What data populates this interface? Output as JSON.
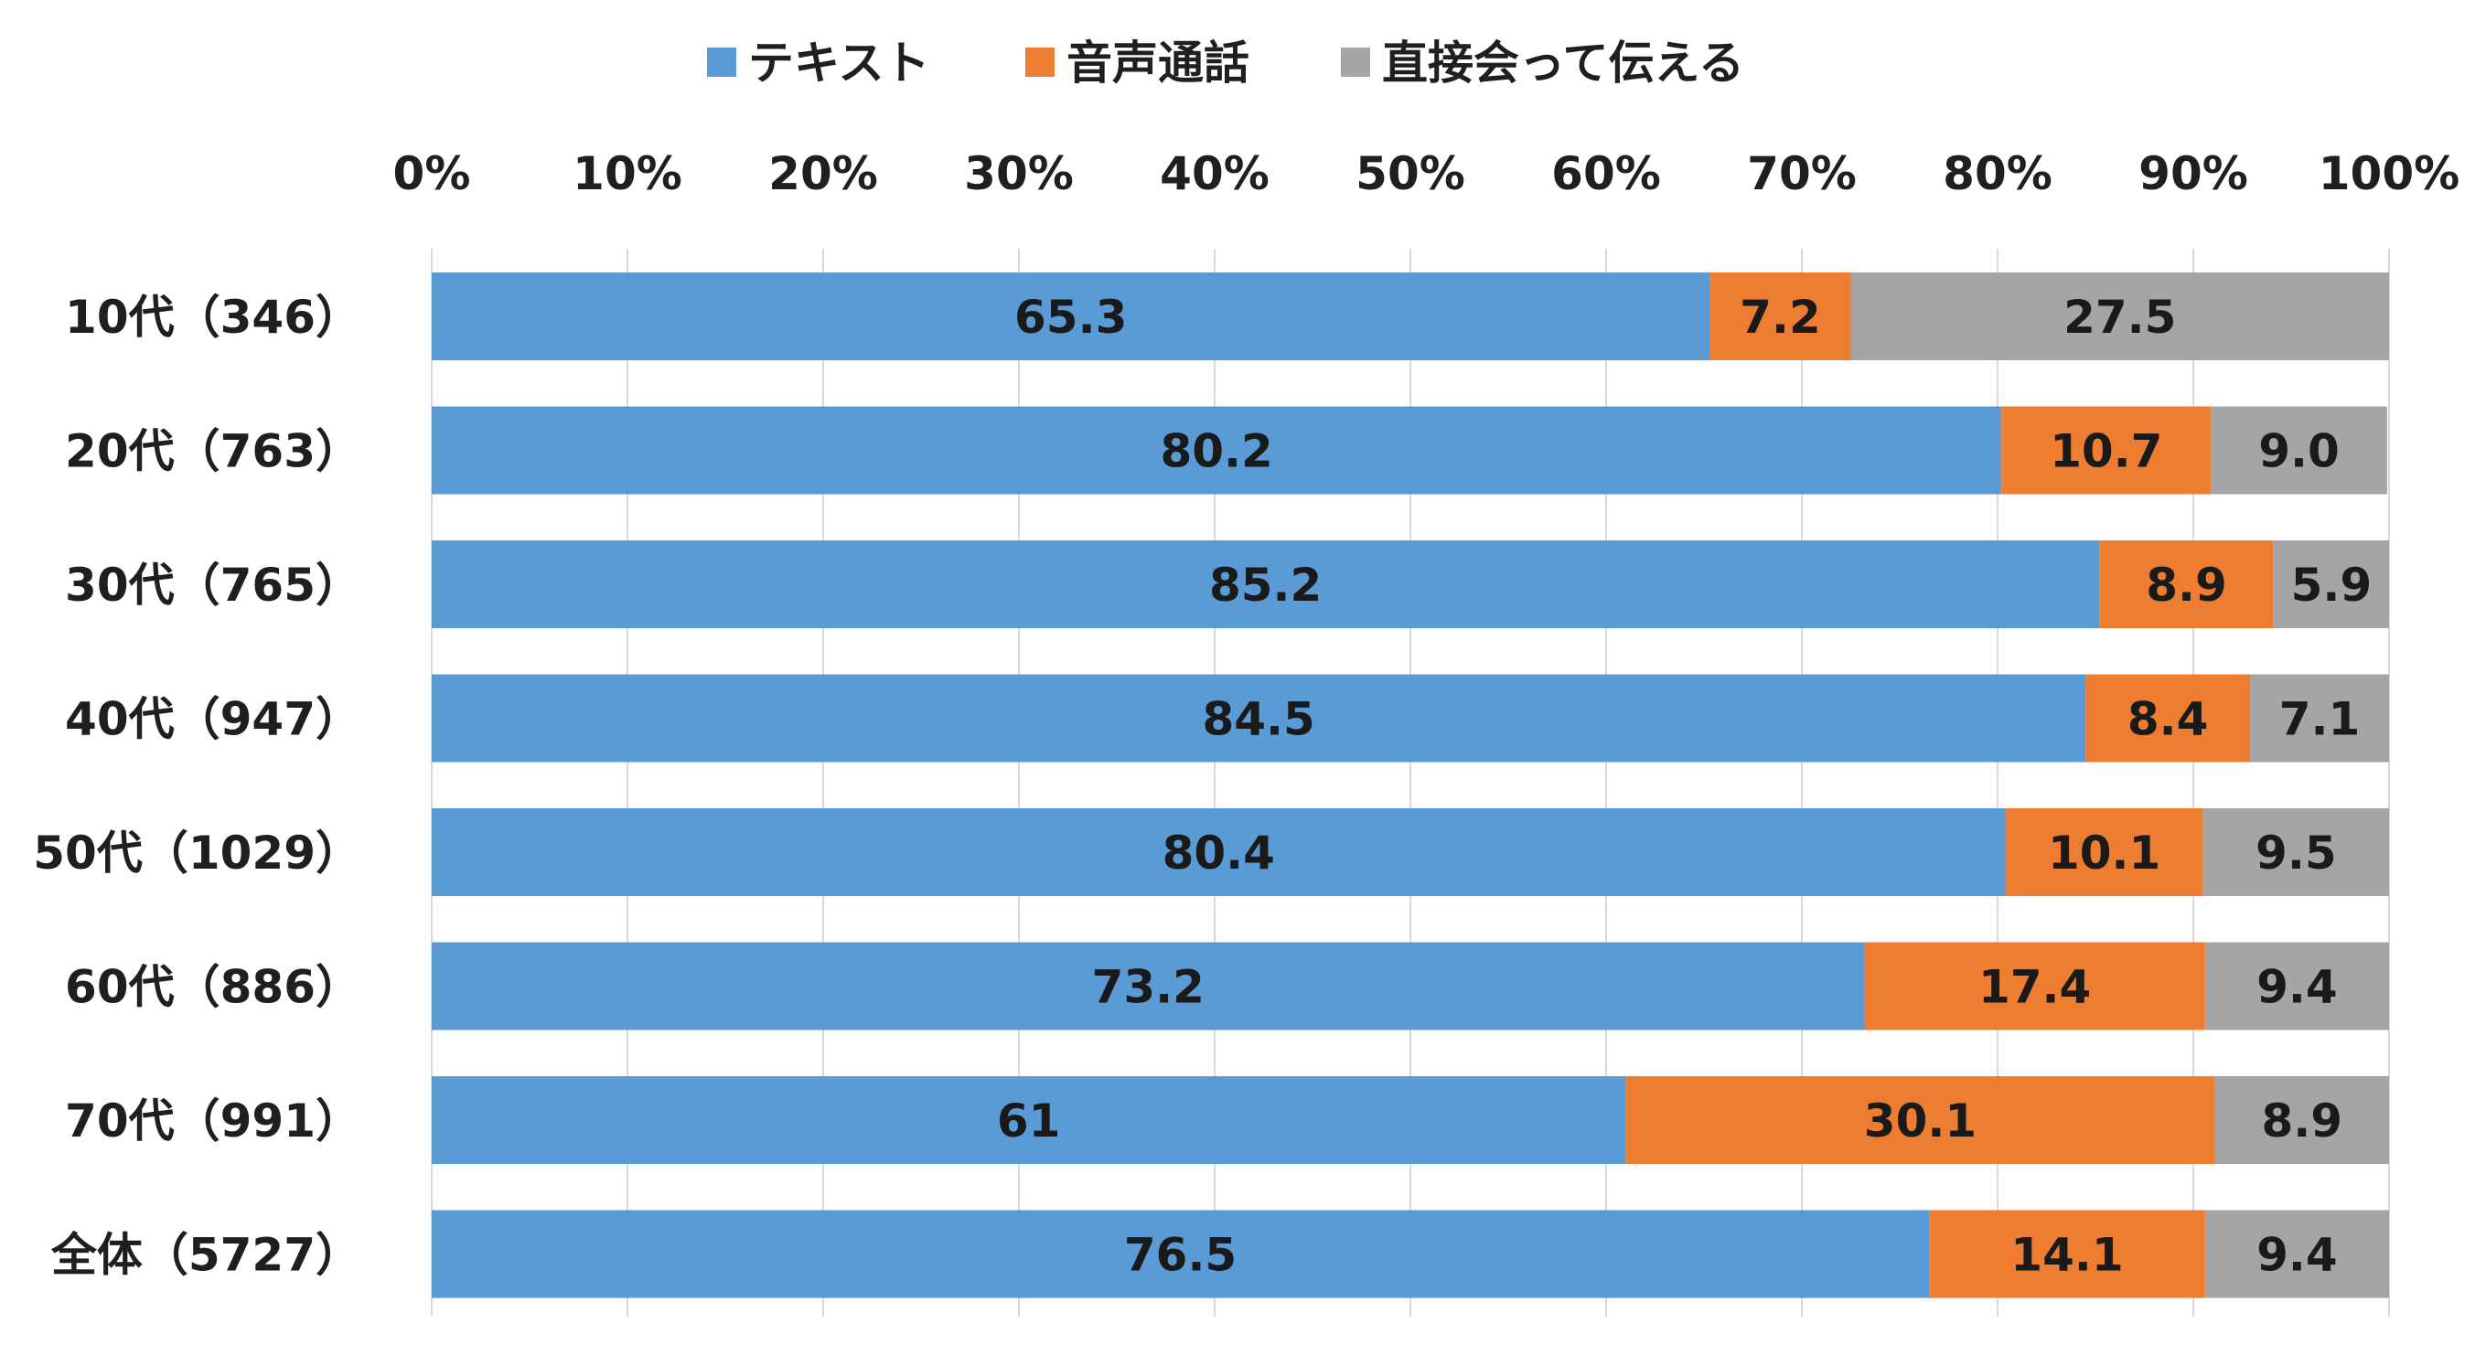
{
  "chart_data": {
    "type": "bar",
    "orientation": "horizontal",
    "stacked": true,
    "percent_axis": true,
    "title": "",
    "xlabel": "",
    "ylabel": "",
    "xlim": [
      0,
      100
    ],
    "x_ticks": [
      "0%",
      "10%",
      "20%",
      "30%",
      "40%",
      "50%",
      "60%",
      "70%",
      "80%",
      "90%",
      "100%"
    ],
    "grid": true,
    "legend_position": "top",
    "categories": [
      "10代（346）",
      "20代（763）",
      "30代（765）",
      "40代（947）",
      "50代（1029）",
      "60代（886）",
      "70代（991）",
      "全体（5727）"
    ],
    "series": [
      {
        "name": "テキスト",
        "color": "#5B9BD5",
        "values": [
          65.3,
          80.2,
          85.2,
          84.5,
          80.4,
          73.2,
          61,
          76.5
        ],
        "labels": [
          "65.3",
          "80.2",
          "85.2",
          "84.5",
          "80.4",
          "73.2",
          "61",
          "76.5"
        ]
      },
      {
        "name": "音声通話",
        "color": "#ED7D31",
        "values": [
          7.2,
          10.7,
          8.9,
          8.4,
          10.1,
          17.4,
          30.1,
          14.1
        ],
        "labels": [
          "7.2",
          "10.7",
          "8.9",
          "8.4",
          "10.1",
          "17.4",
          "30.1",
          "14.1"
        ]
      },
      {
        "name": "直接会って伝える",
        "color": "#A5A5A5",
        "values": [
          27.5,
          9.0,
          5.9,
          7.1,
          9.5,
          9.4,
          8.9,
          9.4
        ],
        "labels": [
          "27.5",
          "9.0",
          "5.9",
          "7.1",
          "9.5",
          "9.4",
          "8.9",
          "9.4"
        ]
      }
    ]
  }
}
